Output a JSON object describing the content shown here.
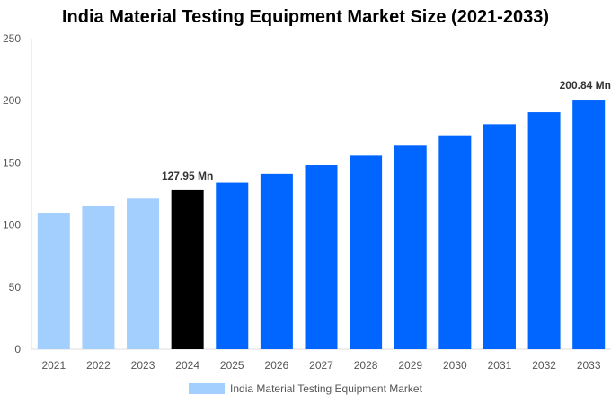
{
  "chart_data": {
    "type": "bar",
    "title": "India Material Testing Equipment Market Size (2021-2033)",
    "categories": [
      "2021",
      "2022",
      "2023",
      "2024",
      "2025",
      "2026",
      "2027",
      "2028",
      "2029",
      "2030",
      "2031",
      "2032",
      "2033"
    ],
    "series": [
      {
        "name": "India Material Testing Equipment Market",
        "values": [
          109.8,
          115.4,
          121.2,
          127.95,
          134.0,
          141.0,
          148.1,
          155.8,
          163.8,
          172.2,
          181.1,
          190.7,
          200.84
        ]
      }
    ],
    "data_labels": {
      "3": "127.95 Mn",
      "12": "200.84 Mn"
    },
    "ylim": [
      0,
      250
    ],
    "yticks": [
      0,
      50,
      100,
      150,
      200,
      250
    ],
    "xlabel": "",
    "ylabel": "",
    "grid": false,
    "legend": "bottom",
    "colors": {
      "historical": "#a3cfff",
      "base_year": "#000000",
      "forecast": "#0066ff",
      "legend": "#a3cfff"
    }
  }
}
